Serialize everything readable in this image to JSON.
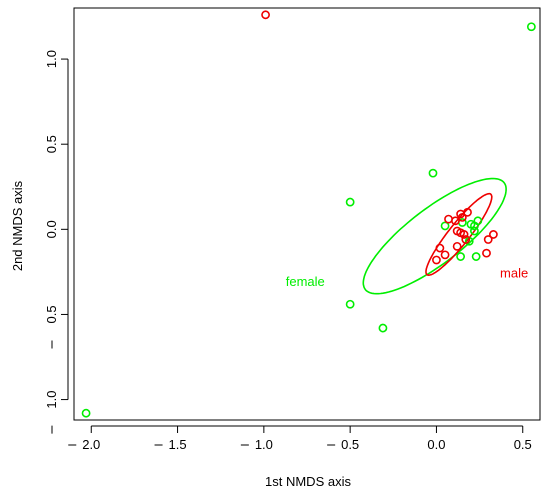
{
  "chart_data": {
    "type": "scatter",
    "xlabel": "1st NMDS axis",
    "ylabel": "2nd NMDS axis",
    "xlim": [
      -2.1,
      0.6
    ],
    "ylim": [
      -1.12,
      1.3
    ],
    "xticks": [
      -2.0,
      -1.5,
      -1.0,
      -0.5,
      0.0,
      0.5
    ],
    "xtick_labels": [
      "2.0",
      "1.5",
      "1.0",
      "0.5",
      "0.0",
      "0.5"
    ],
    "yticks": [
      -1.0,
      -0.5,
      0.0,
      0.5,
      1.0
    ],
    "ytick_labels": [
      "1.0",
      "0.5",
      "0.0",
      "0.5",
      "1.0"
    ],
    "grid": false,
    "groups": {
      "female": {
        "label": "female",
        "color": "#00ee00",
        "label_pos": [
          -0.76,
          -0.31
        ],
        "ellipse": {
          "cx": -0.01,
          "cy": -0.04,
          "rx": 0.51,
          "ry": 0.16,
          "angle_deg": 38
        },
        "points": [
          [
            0.55,
            1.19
          ],
          [
            -2.03,
            -1.08
          ],
          [
            -0.5,
            0.16
          ],
          [
            -0.5,
            -0.44
          ],
          [
            -0.31,
            -0.58
          ],
          [
            -0.02,
            0.33
          ],
          [
            0.05,
            0.02
          ],
          [
            0.14,
            -0.16
          ],
          [
            0.22,
            0.02
          ],
          [
            0.24,
            0.05
          ],
          [
            0.19,
            -0.07
          ],
          [
            0.23,
            -0.16
          ],
          [
            0.15,
            0.04
          ],
          [
            0.22,
            -0.01
          ],
          [
            0.2,
            0.03
          ]
        ]
      },
      "male": {
        "label": "male",
        "color": "#ee0000",
        "label_pos": [
          0.45,
          -0.26
        ],
        "ellipse": {
          "cx": 0.13,
          "cy": -0.03,
          "rx": 0.3,
          "ry": 0.06,
          "angle_deg": 52
        },
        "points": [
          [
            -0.99,
            1.26
          ],
          [
            0.07,
            0.06
          ],
          [
            0.11,
            0.05
          ],
          [
            0.14,
            0.09
          ],
          [
            0.18,
            0.1
          ],
          [
            0.15,
            0.07
          ],
          [
            0.12,
            -0.01
          ],
          [
            0.14,
            -0.02
          ],
          [
            0.16,
            -0.03
          ],
          [
            0.17,
            -0.06
          ],
          [
            0.12,
            -0.1
          ],
          [
            0.02,
            -0.11
          ],
          [
            0.05,
            -0.15
          ],
          [
            0.0,
            -0.18
          ],
          [
            0.29,
            -0.14
          ],
          [
            0.3,
            -0.06
          ],
          [
            0.33,
            -0.03
          ]
        ]
      }
    }
  }
}
